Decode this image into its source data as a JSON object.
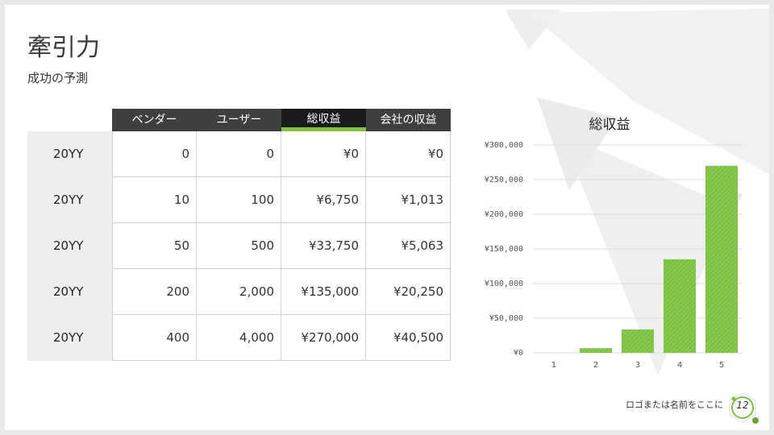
{
  "slide": {
    "title": "牽引力",
    "subtitle": "成功の予測",
    "footer_text": "ロゴまたは名前をここに",
    "page_number": "12"
  },
  "table": {
    "headers": [
      "ベンダー",
      "ユーザー",
      "総収益",
      "会社の収益"
    ],
    "highlight_header_index": 2,
    "rows": [
      {
        "label": "20YY",
        "cells": [
          "0",
          "0",
          "¥0",
          "¥0"
        ]
      },
      {
        "label": "20YY",
        "cells": [
          "10",
          "100",
          "¥6,750",
          "¥1,013"
        ]
      },
      {
        "label": "20YY",
        "cells": [
          "50",
          "500",
          "¥33,750",
          "¥5,063"
        ]
      },
      {
        "label": "20YY",
        "cells": [
          "200",
          "2,000",
          "¥135,000",
          "¥20,250"
        ]
      },
      {
        "label": "20YY",
        "cells": [
          "400",
          "4,000",
          "¥270,000",
          "¥40,500"
        ]
      }
    ]
  },
  "chart_data": {
    "type": "bar",
    "title": "総収益",
    "categories": [
      "1",
      "2",
      "3",
      "4",
      "5"
    ],
    "values": [
      0,
      6750,
      33750,
      135000,
      270000
    ],
    "ylim": [
      0,
      300000
    ],
    "yticks": [
      0,
      50000,
      100000,
      150000,
      200000,
      250000,
      300000
    ],
    "ytick_labels": [
      "¥0",
      "¥50,000",
      "¥100,000",
      "¥150,000",
      "¥200,000",
      "¥250,000",
      "¥300,000"
    ],
    "grid": true,
    "bar_color": "#7dc246"
  },
  "colors": {
    "accent": "#7dc246",
    "header_dark": "#3f3f3f",
    "header_highlight": "#1a1a1a"
  }
}
